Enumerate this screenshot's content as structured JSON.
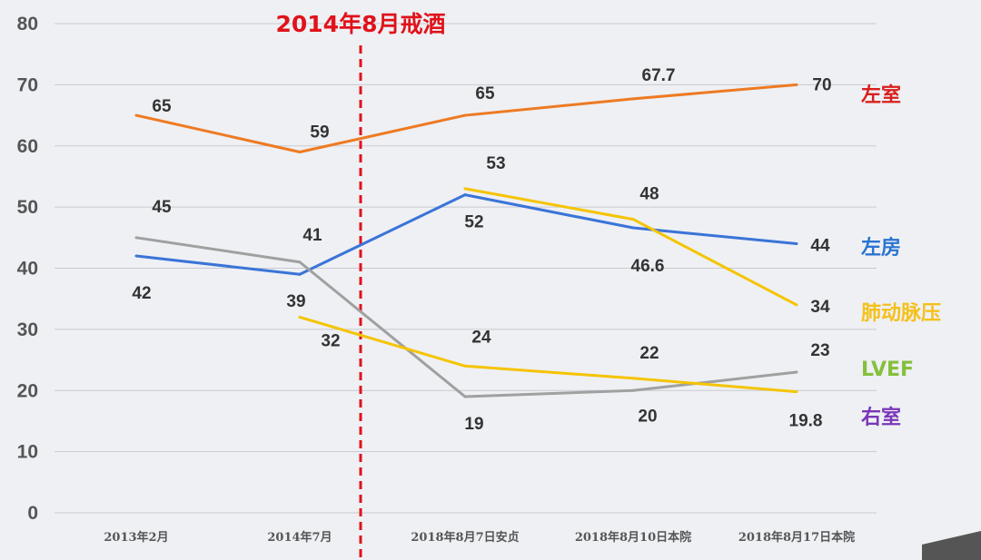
{
  "chart_data": {
    "type": "line",
    "categories": [
      "2013年2月",
      "2014年7月",
      "2018年8月7日安贞",
      "2018年8月10日本院",
      "2018年8月17日本院"
    ],
    "ylim": [
      0,
      80
    ],
    "yticks": [
      0,
      10,
      20,
      30,
      40,
      50,
      60,
      70,
      80
    ],
    "grid": true,
    "legend_placement": "right",
    "annotation": {
      "text": "2014年8月戒酒",
      "position_between": [
        "2014年7月",
        "2018年8月7日安贞"
      ],
      "color": "#e0121a",
      "style": "dashed vertical line"
    },
    "series": [
      {
        "color": "#ee7a22",
        "values": [
          65,
          59,
          65,
          67.7,
          70
        ],
        "labels": [
          "65",
          "59",
          "65",
          "67.7",
          "70"
        ]
      },
      {
        "color": "#3a74d8",
        "values": [
          42,
          39,
          52,
          46.6,
          44
        ],
        "labels": [
          "42",
          "39",
          "52",
          "46.6",
          "44"
        ]
      },
      {
        "color": "#a0a0a0",
        "values": [
          45,
          41,
          19,
          20,
          23
        ],
        "labels": [
          "45",
          "41",
          "19",
          "20",
          "23"
        ]
      },
      {
        "color": "#f5c400",
        "values": [
          null,
          null,
          53,
          48,
          34
        ],
        "labels": [
          "",
          "",
          "53",
          "48",
          "34"
        ]
      },
      {
        "color": "#f5c400",
        "values": [
          null,
          32,
          24,
          22,
          19.8
        ],
        "labels": [
          "",
          "32",
          "24",
          "22",
          "19.8"
        ]
      }
    ],
    "legend": [
      {
        "text": "左室",
        "color": "#d8201c"
      },
      {
        "text": "左房",
        "color": "#2a74d0"
      },
      {
        "text": "肺动脉压",
        "color": "#f5c01a"
      },
      {
        "text": "LVEF",
        "color": "#86bf3c"
      },
      {
        "text": "右室",
        "color": "#7a36b8"
      }
    ]
  }
}
